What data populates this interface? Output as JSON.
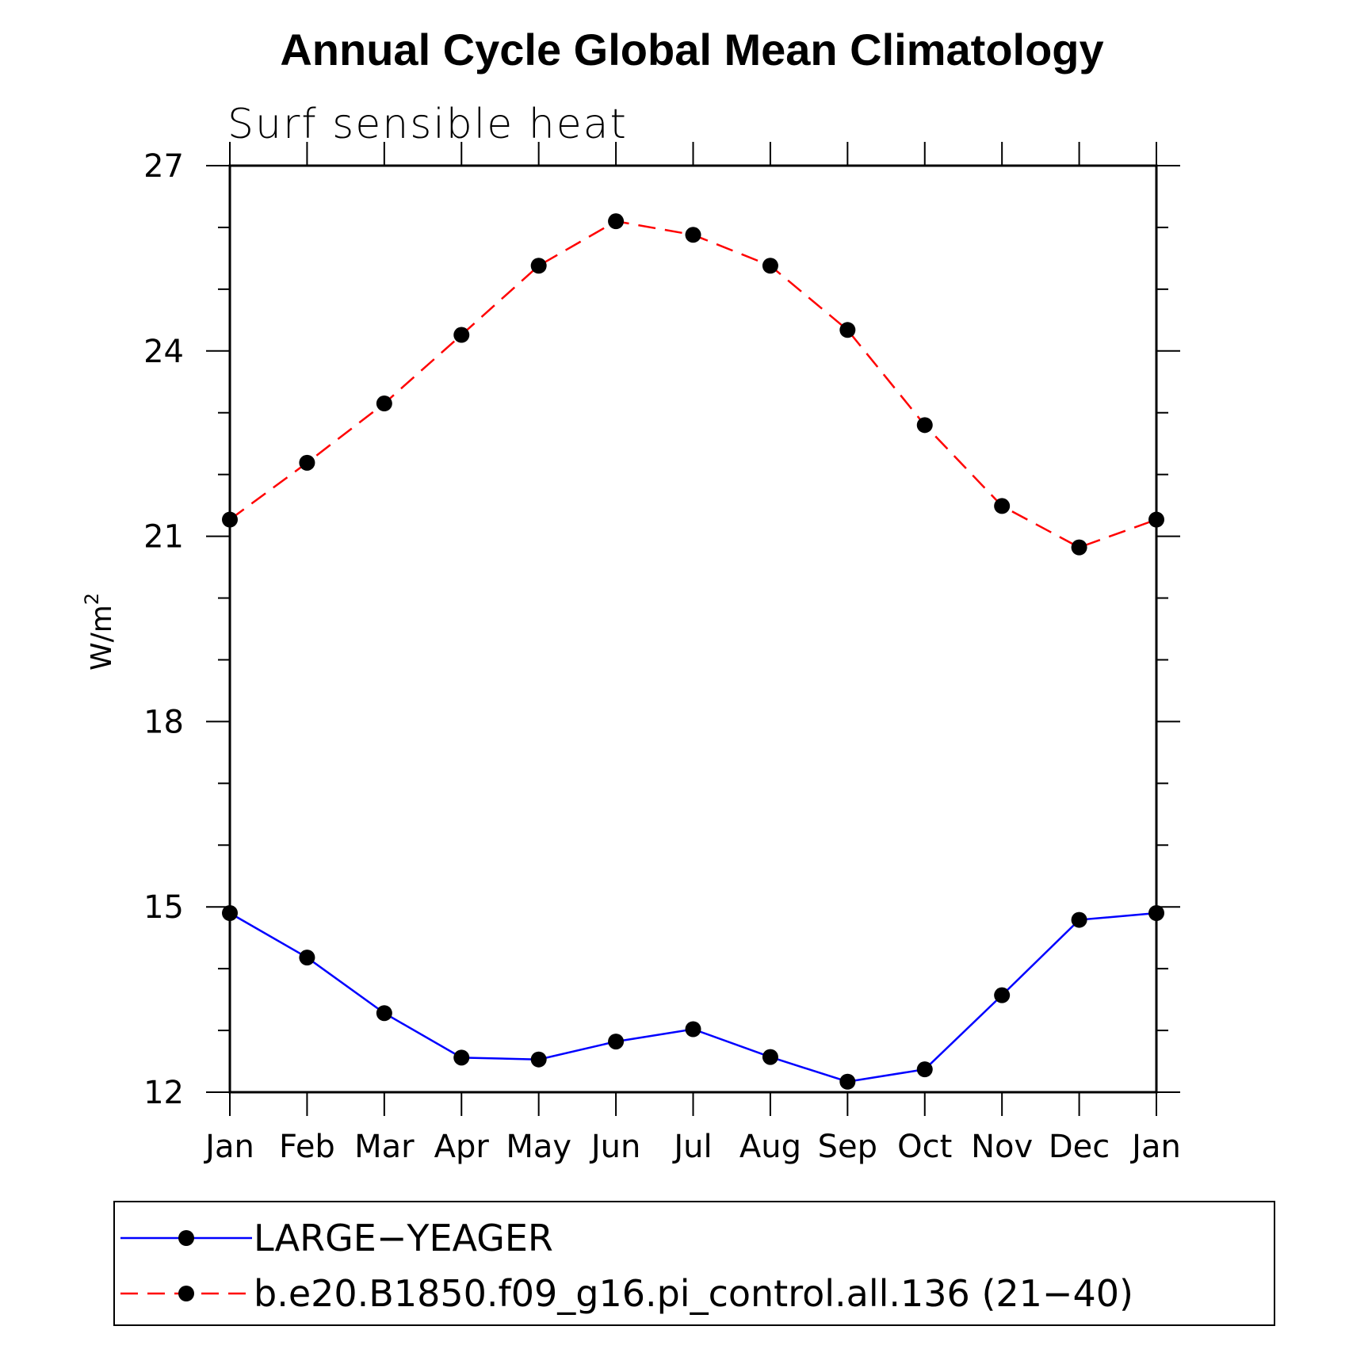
{
  "chart_data": {
    "type": "line",
    "title": "Annual Cycle Global Mean Climatology",
    "subtitle": "Surf  sensible  heat",
    "xlabel": "",
    "ylabel": "W/m",
    "ylabel_superscript": "2",
    "categories": [
      "Jan",
      "Feb",
      "Mar",
      "Apr",
      "May",
      "Jun",
      "Jul",
      "Aug",
      "Sep",
      "Oct",
      "Nov",
      "Dec",
      "Jan"
    ],
    "ylim": [
      12,
      27
    ],
    "yticks": [
      12,
      15,
      18,
      21,
      24,
      27
    ],
    "ytick_labels": [
      "12",
      "15",
      "18",
      "21",
      "24",
      "27"
    ],
    "yminor_step": 1,
    "series": [
      {
        "name": "LARGE−YEAGER",
        "color": "#0000ff",
        "line_style": "solid",
        "marker": "filled-circle",
        "values": [
          14.9,
          14.18,
          13.28,
          12.56,
          12.53,
          12.82,
          13.02,
          12.57,
          12.17,
          12.37,
          13.57,
          14.79,
          14.9
        ]
      },
      {
        "name": "b.e20.B1850.f09_g16.pi_control.all.136 (21−40)",
        "color": "#ff0000",
        "line_style": "dashed",
        "marker": "filled-circle",
        "values": [
          21.27,
          22.19,
          23.15,
          24.26,
          25.38,
          26.1,
          25.88,
          25.38,
          24.34,
          22.8,
          21.49,
          20.82,
          21.27
        ]
      }
    ],
    "legend_position": "bottom"
  }
}
